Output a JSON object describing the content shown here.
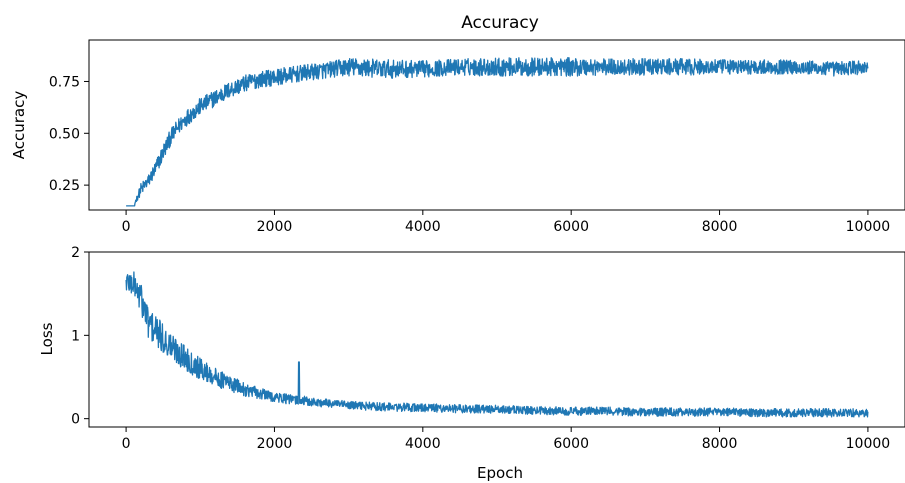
{
  "chart_data": [
    {
      "type": "line",
      "title": "Accuracy",
      "xlabel": "",
      "ylabel": "Accuracy",
      "xlim": [
        -500,
        10500
      ],
      "ylim": [
        0.13,
        0.95
      ],
      "xticks": [
        0,
        2000,
        4000,
        6000,
        8000,
        10000
      ],
      "xtick_labels": [
        "0",
        "2000",
        "4000",
        "6000",
        "8000",
        "10000"
      ],
      "yticks": [
        0.25,
        0.5,
        0.75
      ],
      "ytick_labels": [
        "0.25",
        "0.50",
        "0.75"
      ],
      "grid": false,
      "color": "#1f77b4",
      "series": [
        {
          "x": [
            0,
            100,
            200,
            300,
            400,
            500,
            600,
            700,
            800,
            900,
            1000,
            1200,
            1400,
            1600,
            1800,
            2000,
            2200,
            2400,
            2600,
            2800,
            3000,
            3500,
            4000,
            4500,
            5000,
            5500,
            6000,
            6500,
            7000,
            7500,
            8000,
            8500,
            9000,
            9500,
            10000
          ],
          "y": [
            0.15,
            0.15,
            0.23,
            0.27,
            0.33,
            0.41,
            0.48,
            0.53,
            0.57,
            0.6,
            0.63,
            0.67,
            0.71,
            0.74,
            0.76,
            0.77,
            0.78,
            0.79,
            0.8,
            0.81,
            0.82,
            0.81,
            0.81,
            0.82,
            0.82,
            0.82,
            0.82,
            0.82,
            0.82,
            0.82,
            0.82,
            0.82,
            0.82,
            0.81,
            0.82
          ],
          "noise": [
            0.0,
            0.0,
            0.03,
            0.03,
            0.04,
            0.04,
            0.04,
            0.04,
            0.04,
            0.04,
            0.04,
            0.04,
            0.04,
            0.04,
            0.04,
            0.04,
            0.04,
            0.04,
            0.04,
            0.04,
            0.045,
            0.045,
            0.04,
            0.04,
            0.045,
            0.045,
            0.045,
            0.04,
            0.04,
            0.04,
            0.035,
            0.035,
            0.035,
            0.035,
            0.035
          ]
        }
      ]
    },
    {
      "type": "line",
      "title": "",
      "xlabel": "Epoch",
      "ylabel": "Loss",
      "xlim": [
        -500,
        10500
      ],
      "ylim": [
        -0.1,
        2.0
      ],
      "xticks": [
        0,
        2000,
        4000,
        6000,
        8000,
        10000
      ],
      "xtick_labels": [
        "0",
        "2000",
        "4000",
        "6000",
        "8000",
        "10000"
      ],
      "yticks": [
        0,
        1,
        2
      ],
      "ytick_labels": [
        "0",
        "1",
        "2"
      ],
      "grid": false,
      "color": "#1f77b4",
      "series": [
        {
          "x": [
            0,
            100,
            200,
            300,
            400,
            500,
            600,
            700,
            800,
            900,
            1000,
            1200,
            1400,
            1600,
            1800,
            2000,
            2200,
            2400,
            2600,
            2800,
            3000,
            3500,
            4000,
            4500,
            5000,
            5500,
            6000,
            6500,
            7000,
            7500,
            8000,
            8500,
            9000,
            9500,
            10000
          ],
          "y": [
            1.65,
            1.62,
            1.45,
            1.15,
            1.05,
            0.95,
            0.87,
            0.8,
            0.73,
            0.66,
            0.6,
            0.5,
            0.42,
            0.35,
            0.3,
            0.26,
            0.23,
            0.21,
            0.19,
            0.18,
            0.16,
            0.14,
            0.13,
            0.12,
            0.11,
            0.1,
            0.09,
            0.09,
            0.08,
            0.08,
            0.08,
            0.07,
            0.07,
            0.07,
            0.07
          ],
          "noise": [
            0.15,
            0.15,
            0.18,
            0.2,
            0.2,
            0.18,
            0.17,
            0.16,
            0.15,
            0.14,
            0.13,
            0.11,
            0.1,
            0.08,
            0.07,
            0.06,
            0.06,
            0.06,
            0.05,
            0.05,
            0.05,
            0.05,
            0.05,
            0.05,
            0.05,
            0.05,
            0.05,
            0.05,
            0.05,
            0.05,
            0.05,
            0.05,
            0.05,
            0.05,
            0.05
          ]
        }
      ]
    }
  ]
}
